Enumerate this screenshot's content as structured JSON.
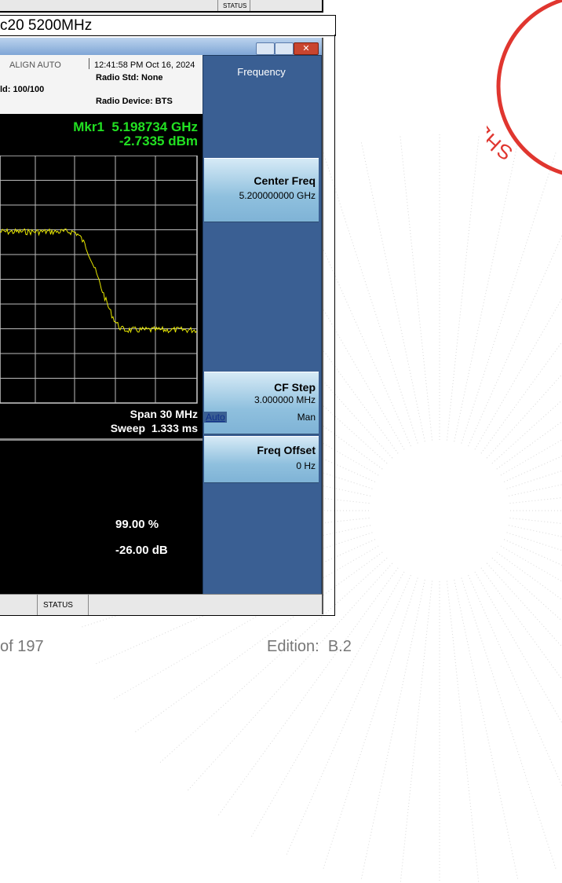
{
  "top_window": {
    "status": "STATUS"
  },
  "table": {
    "cell": "c20 5200MHz"
  },
  "analyzer": {
    "header": {
      "align": "ALIGN AUTO",
      "timestamp": "12:41:58 PM Oct 16, 2024",
      "radio_std": "Radio Std: None",
      "hold": "ld: 100/100",
      "radio_device": "Radio Device: BTS"
    },
    "marker": {
      "label": "Mkr1",
      "frequency": "5.198734 GHz",
      "level": "-2.7335 dBm"
    },
    "span": "Span 30 MHz",
    "sweep": "Sweep  1.333 ms",
    "results": [
      "99.00 %",
      "-26.00 dB"
    ],
    "status": "STATUS",
    "softkeys": {
      "menu": "Frequency",
      "center_freq": {
        "label": "Center Freq",
        "value": "5.200000000 GHz"
      },
      "cf_step": {
        "label": "CF Step",
        "value": "3.000000 MHz",
        "auto": "Auto",
        "man": "Man"
      },
      "freq_offset": {
        "label": "Freq Offset",
        "value": "0 Hz"
      }
    }
  },
  "stamp": "SHENZHEN",
  "footer": {
    "page": "of 197",
    "edition": "Edition:  B.2"
  }
}
